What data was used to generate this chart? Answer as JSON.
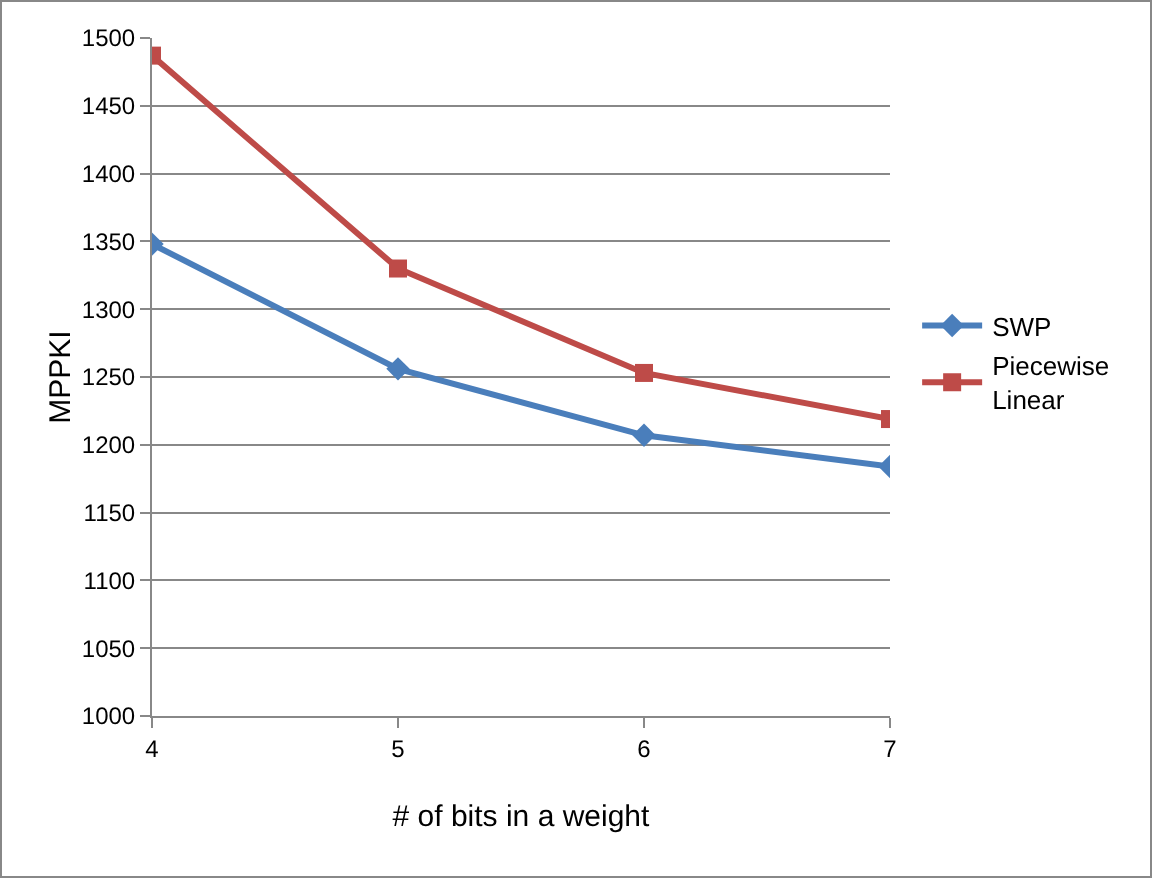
{
  "chart_data": {
    "type": "line",
    "xlabel": "# of bits in a weight",
    "ylabel": "MPPKI",
    "x": [
      4,
      5,
      6,
      7
    ],
    "xlim": [
      4,
      7
    ],
    "xticks": [
      4,
      5,
      6,
      7
    ],
    "ylim": [
      1000,
      1500
    ],
    "yticks": [
      1000,
      1050,
      1100,
      1150,
      1200,
      1250,
      1300,
      1350,
      1400,
      1450,
      1500
    ],
    "series": [
      {
        "name": "SWP",
        "color": "#4a7ebb",
        "values": [
          1348,
          1256,
          1207,
          1184
        ],
        "marker": "diamond"
      },
      {
        "name": "Piecewise Linear",
        "color": "#be4b48",
        "values": [
          1487,
          1330,
          1253,
          1219
        ],
        "marker": "square"
      }
    ],
    "grid": "y",
    "legend": "right",
    "line_style": "solid"
  }
}
